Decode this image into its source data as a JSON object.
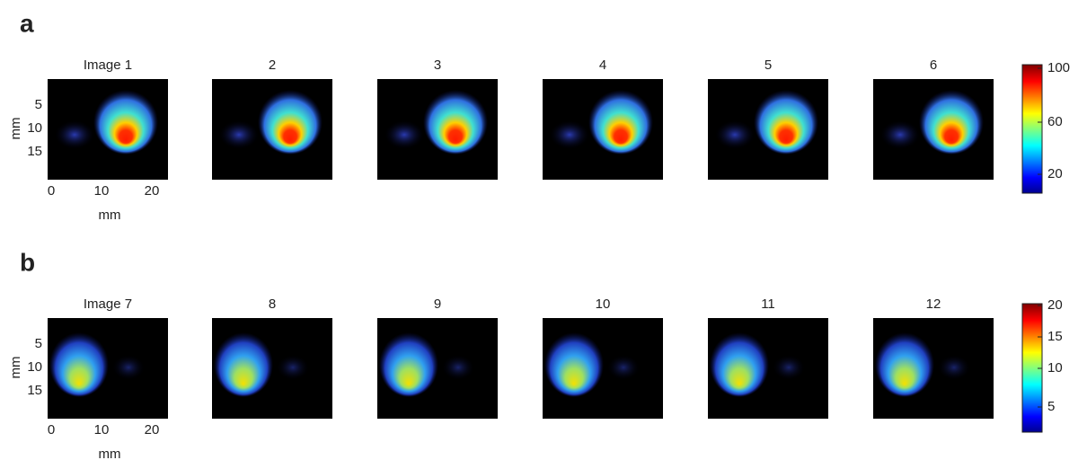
{
  "panels": [
    {
      "label": "a",
      "titles": [
        "Image 1",
        "2",
        "3",
        "4",
        "5",
        "6"
      ],
      "y_axis": {
        "label": "mm",
        "ticks": [
          "5",
          "10",
          "15"
        ]
      },
      "x_axis": {
        "label": "mm",
        "ticks": [
          "0",
          "10",
          "20"
        ]
      },
      "colorbar_ticks": [
        "100",
        "60",
        "20"
      ]
    },
    {
      "label": "b",
      "titles": [
        "Image 7",
        "8",
        "9",
        "10",
        "11",
        "12"
      ],
      "y_axis": {
        "label": "mm",
        "ticks": [
          "5",
          "10",
          "15"
        ]
      },
      "x_axis": {
        "label": "mm",
        "ticks": [
          "0",
          "10",
          "20"
        ]
      },
      "colorbar_ticks": [
        "20",
        "15",
        "10",
        "5"
      ]
    }
  ]
}
